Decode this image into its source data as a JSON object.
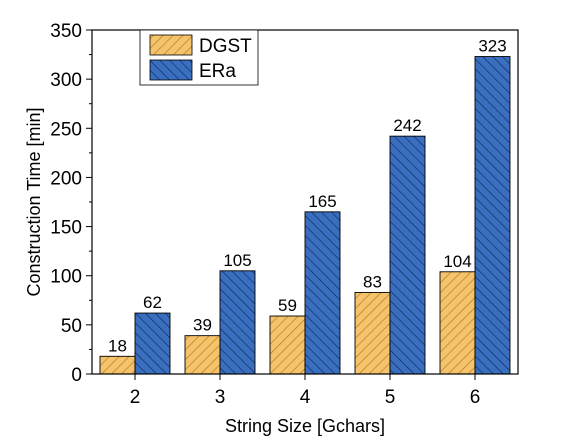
{
  "chart_data": {
    "type": "bar",
    "xlabel": "String Size [Gchars]",
    "ylabel": "Construction Time [min]",
    "categories": [
      "2",
      "3",
      "4",
      "5",
      "6"
    ],
    "ylim": [
      0,
      350
    ],
    "yticks": [
      "0",
      "50",
      "100",
      "150",
      "200",
      "250",
      "300",
      "350"
    ],
    "legend_position": "top-left",
    "grid": false,
    "series": [
      {
        "name": "DGST",
        "values": [
          18,
          39,
          59,
          83,
          104
        ],
        "color": "#F5C36B",
        "hatch_color": "#B07A1E",
        "value_labels": [
          "18",
          "39",
          "59",
          "83",
          "104"
        ]
      },
      {
        "name": "ERa",
        "values": [
          62,
          105,
          165,
          242,
          323
        ],
        "color": "#3A6FC0",
        "hatch_color": "#0E2A5C",
        "value_labels": [
          "62",
          "105",
          "165",
          "242",
          "323"
        ]
      }
    ]
  }
}
